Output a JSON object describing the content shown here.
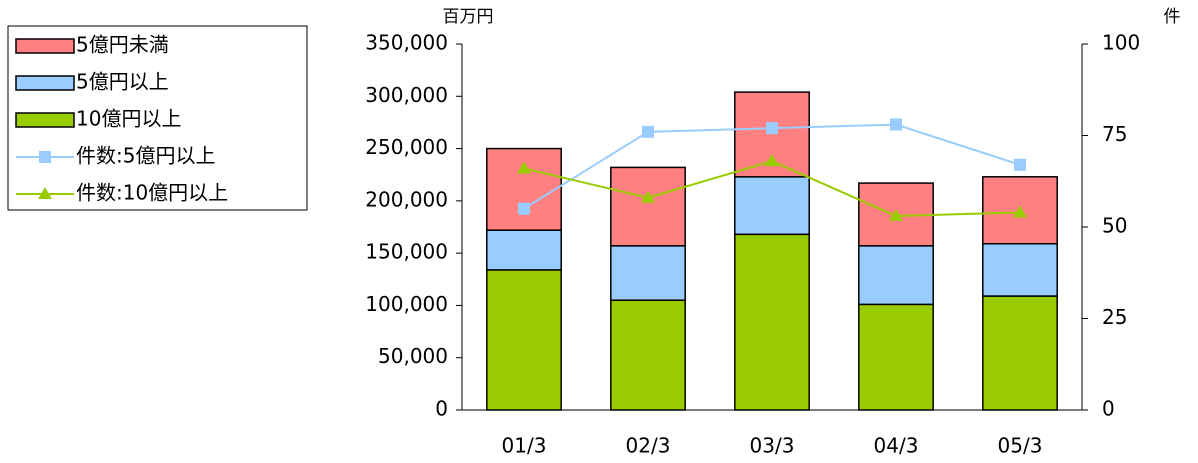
{
  "chart_data": {
    "type": "bar",
    "y_unit": "百万円",
    "y2_unit": "件",
    "categories": [
      "01/3",
      "02/3",
      "03/3",
      "04/3",
      "05/3"
    ],
    "series": [
      {
        "name": "5億円未満",
        "type": "bar",
        "color": "#ff8080",
        "values": [
          78000,
          75000,
          81000,
          60000,
          64000
        ]
      },
      {
        "name": "5億円以上",
        "type": "bar",
        "color": "#99ccff",
        "values": [
          38000,
          52000,
          55000,
          56000,
          50000
        ]
      },
      {
        "name": "10億円以上",
        "type": "bar",
        "color": "#99cc00",
        "values": [
          134000,
          105000,
          168000,
          101000,
          109000
        ]
      },
      {
        "name": "件数:5億円以上",
        "type": "line",
        "axis": "y2",
        "marker": "square",
        "color": "#99ccff",
        "values": [
          55,
          76,
          77,
          78,
          67
        ]
      },
      {
        "name": "件数:10億円以上",
        "type": "line",
        "axis": "y2",
        "marker": "triangle",
        "color": "#99cc00",
        "values": [
          66,
          58,
          68,
          53,
          54
        ]
      }
    ],
    "stacked": true,
    "ylim": [
      0,
      350000
    ],
    "yticks": [
      0,
      {
        "value": 50000,
        "label": "50,000"
      },
      {
        "value": 100000,
        "label": "100,000"
      },
      {
        "value": 150000,
        "label": "150,000"
      },
      {
        "value": 200000,
        "label": "200,000"
      },
      {
        "value": 250000,
        "label": "250,000"
      },
      {
        "value": 300000,
        "label": "300,000"
      },
      {
        "value": 350000,
        "label": "350,000"
      }
    ],
    "y2lim": [
      0,
      100
    ],
    "y2ticks": [
      0,
      25,
      50,
      75,
      100
    ],
    "grid": false,
    "legend": "left"
  }
}
